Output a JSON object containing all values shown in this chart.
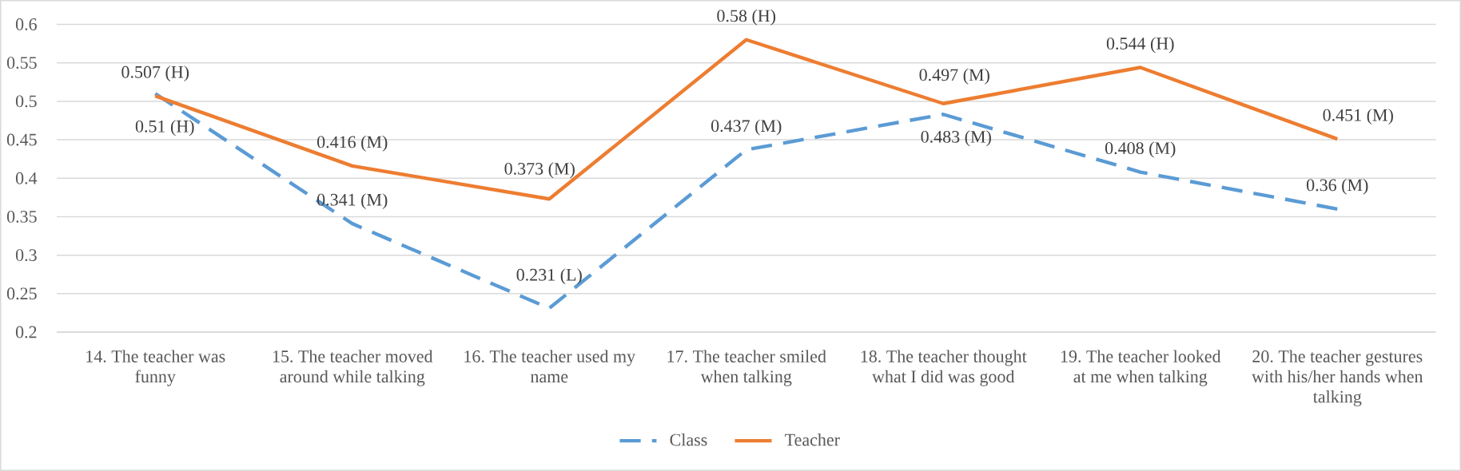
{
  "chart_data": {
    "type": "line",
    "categories": [
      "14. The teacher was funny",
      "15. The teacher moved around while talking",
      "16. The teacher used my name",
      "17. The teacher smiled when talking",
      "18. The teacher thought what I did was good",
      "19. The teacher looked at me when talking",
      "20. The teacher gestures with his/her hands when talking"
    ],
    "series": [
      {
        "name": "Class",
        "color": "#5b9bd5",
        "line_style": "dashed",
        "values": [
          0.51,
          0.341,
          0.231,
          0.437,
          0.483,
          0.408,
          0.36
        ],
        "value_labels": [
          "0.51 (H)",
          "0.341 (M)",
          "0.231 (L)",
          "0.437 (M)",
          "0.483 (M)",
          "0.408 (M)",
          "0.36 (M)"
        ]
      },
      {
        "name": "Teacher",
        "color": "#ed7d31",
        "line_style": "solid",
        "values": [
          0.507,
          0.416,
          0.373,
          0.58,
          0.497,
          0.544,
          0.451
        ],
        "value_labels": [
          "0.507 (H)",
          "0.416 (M)",
          "0.373 (M)",
          "0.58 (H)",
          "0.497 (M)",
          "0.544 (H)",
          "0.451 (M)"
        ]
      }
    ],
    "ylim": [
      0.2,
      0.6
    ],
    "yticks": [
      0.2,
      0.25,
      0.3,
      0.35,
      0.4,
      0.45,
      0.5,
      0.55,
      0.6
    ],
    "grid": "y",
    "legend": "bottom",
    "marker": "none"
  }
}
